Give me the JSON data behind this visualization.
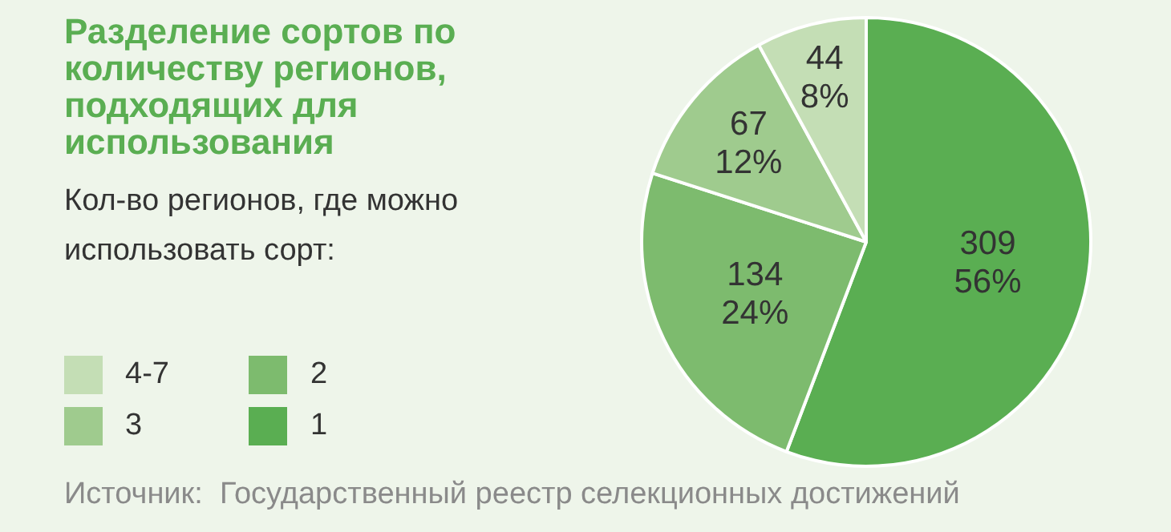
{
  "chart_data": {
    "type": "pie",
    "title": "Разделение сортов по количеству регионов, подходящих для использования",
    "legend_title": "Кол-во регионов, где можно использовать сорт:",
    "categories": [
      "1",
      "2",
      "3",
      "4-7"
    ],
    "values": [
      309,
      134,
      67,
      44
    ],
    "colors": [
      "#5aae52",
      "#7dbb6e",
      "#9fcb8e",
      "#c4deb5"
    ],
    "value_labels": [
      "309\n56%",
      "134\n24%",
      "67\n12%",
      "44\n8%"
    ],
    "legend": "left",
    "annotations": [
      "Источник:  Государственный реестр селекционных достижений"
    ]
  }
}
